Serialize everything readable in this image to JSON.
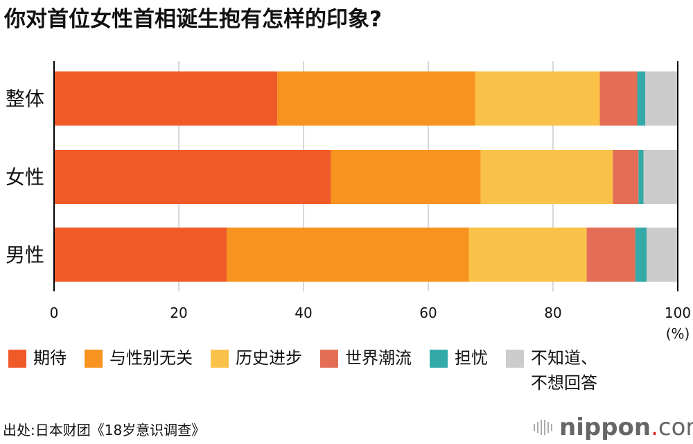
{
  "title": "你对首位女性首相诞生抱有怎样的印象?",
  "chart_data": {
    "type": "bar",
    "orientation": "horizontal",
    "stacked": true,
    "categories": [
      "整体",
      "女性",
      "男性"
    ],
    "series": [
      {
        "name": "期待",
        "color": "#f05a28",
        "values": [
          35.8,
          44.4,
          27.7
        ]
      },
      {
        "name": "与性别无关",
        "color": "#f7931e",
        "values": [
          31.7,
          24.0,
          38.8
        ]
      },
      {
        "name": "历史进步",
        "color": "#fbc24a",
        "values": [
          20.0,
          21.2,
          18.9
        ]
      },
      {
        "name": "世界潮流",
        "color": "#e36e55",
        "values": [
          6.0,
          4.1,
          7.8
        ]
      },
      {
        "name": "担忧",
        "color": "#34aaa8",
        "values": [
          1.3,
          0.8,
          1.8
        ]
      },
      {
        "name": "不知道、\n不想回答",
        "color": "#cccccc",
        "values": [
          5.2,
          5.5,
          5.0
        ]
      }
    ],
    "xlim": [
      0,
      100
    ],
    "xticks": [
      "0",
      "20",
      "40",
      "60",
      "80",
      "100"
    ],
    "xunit": "(%)",
    "grid": true,
    "legend": "bottom"
  },
  "source": "出处:日本财团《18岁意识调查》",
  "logo": {
    "main": "nippon",
    "dot": ".",
    "suffix": "com"
  }
}
